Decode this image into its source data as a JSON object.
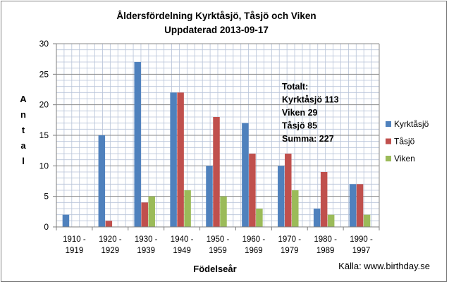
{
  "chart_data": {
    "type": "bar",
    "title": "Åldersfördelning Kyrktåsjö, Tåsjö och Viken",
    "subtitle": "Uppdaterad 2013-09-17",
    "xlabel": "Födelseår",
    "ylabel": "Antal",
    "ylim": [
      0,
      30
    ],
    "yticks": [
      0,
      5,
      10,
      15,
      20,
      25,
      30
    ],
    "grid": true,
    "legend_position": "right",
    "categories": [
      [
        "1910 -",
        "1919"
      ],
      [
        "1920 -",
        "1929"
      ],
      [
        "1930 -",
        "1939"
      ],
      [
        "1940 -",
        "1949"
      ],
      [
        "1950 -",
        "1959"
      ],
      [
        "1960 -",
        "1969"
      ],
      [
        "1970 -",
        "1979"
      ],
      [
        "1980 -",
        "1989"
      ],
      [
        "1990 -",
        "1997"
      ]
    ],
    "series": [
      {
        "name": "Kyrktåsjö",
        "color": "#4f81bd",
        "values": [
          2,
          15,
          27,
          22,
          10,
          17,
          10,
          3,
          7
        ]
      },
      {
        "name": "Tåsjö",
        "color": "#c0504d",
        "values": [
          0,
          1,
          4,
          22,
          18,
          12,
          12,
          9,
          7
        ]
      },
      {
        "name": "Viken",
        "color": "#9bbb59",
        "values": [
          0,
          0,
          5,
          6,
          5,
          3,
          6,
          2,
          2
        ]
      }
    ],
    "annotation": [
      "Totalt:",
      "Kyrktåsjö 113",
      "Viken 29",
      "Tåsjö 85",
      "Summa:  227"
    ],
    "source": "Källa: www.birthday.se"
  }
}
